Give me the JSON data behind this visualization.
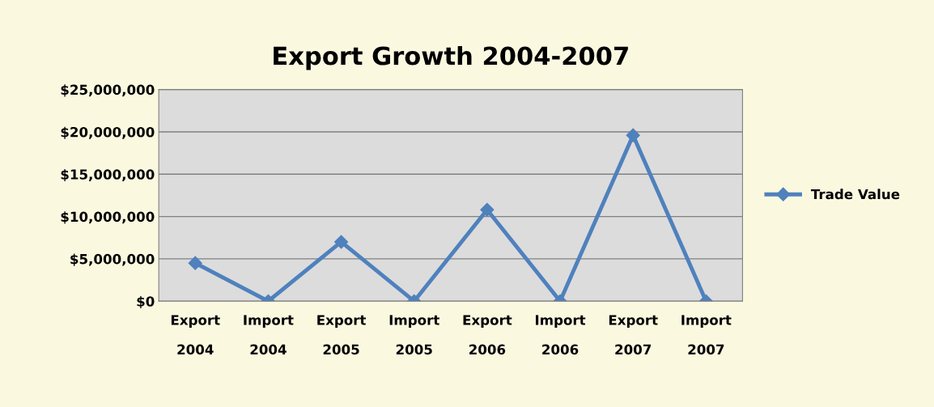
{
  "chart_data": {
    "type": "line",
    "title": "Export Growth 2004-2007",
    "categories": [
      "Export\n2004",
      "Import\n2004",
      "Export\n2005",
      "Import\n2005",
      "Export\n2006",
      "Import\n2006",
      "Export\n2007",
      "Import\n2007"
    ],
    "series": [
      {
        "name": "Trade Value",
        "color": "#4f81bd",
        "values": [
          4500000,
          0,
          7000000,
          0,
          10800000,
          0,
          19600000,
          0
        ]
      }
    ],
    "ylim": [
      0,
      25000000
    ],
    "yticks": [
      {
        "value": 0,
        "label": "$0"
      },
      {
        "value": 5000000,
        "label": "$5,000,000"
      },
      {
        "value": 10000000,
        "label": "$10,000,000"
      },
      {
        "value": 15000000,
        "label": "$15,000,000"
      },
      {
        "value": 20000000,
        "label": "$20,000,000"
      },
      {
        "value": 25000000,
        "label": "$25,000,000"
      }
    ],
    "grid": "y",
    "legend": "right",
    "marker": "diamond",
    "line_style": "solid"
  }
}
